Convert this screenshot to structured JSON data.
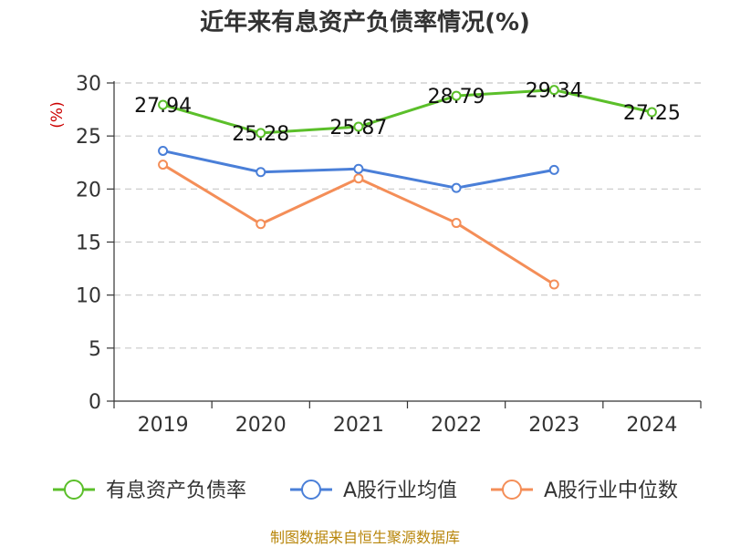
{
  "chart_data": {
    "type": "line",
    "title": "近年来有息资产负债率情况(%)",
    "ylabel": "(%)",
    "xlabel": "",
    "categories": [
      "2019",
      "2020",
      "2021",
      "2022",
      "2023",
      "2024"
    ],
    "ylim": [
      0,
      30
    ],
    "yticks": [
      0,
      5,
      10,
      15,
      20,
      25,
      30
    ],
    "grid": "horizontal-dashed",
    "legend_position": "bottom",
    "series": [
      {
        "name": "有息资产负债率",
        "color": "#5bbf2a",
        "values": [
          27.94,
          25.28,
          25.87,
          28.79,
          29.34,
          27.25
        ],
        "labels": [
          "27.94",
          "25.28",
          "25.87",
          "28.79",
          "29.34",
          "27.25"
        ]
      },
      {
        "name": "A股行业均值",
        "color": "#4a7fd8",
        "values": [
          23.6,
          21.6,
          21.9,
          20.1,
          21.8,
          null
        ]
      },
      {
        "name": "A股行业中位数",
        "color": "#f48e58",
        "values": [
          22.3,
          16.7,
          21.0,
          16.8,
          11.0,
          null
        ]
      }
    ]
  },
  "source": "制图数据来自恒生聚源数据库"
}
